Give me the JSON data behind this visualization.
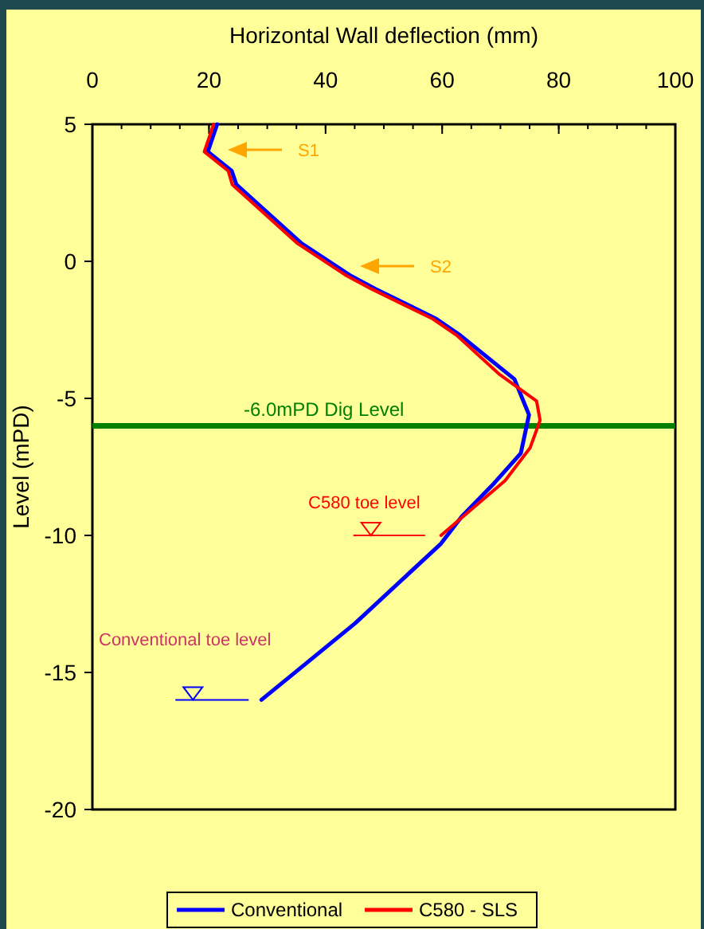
{
  "chart_data": {
    "type": "line",
    "title": "Horizontal Wall deflection (mm)",
    "ylabel": "Level (mPD)",
    "xlim": [
      0,
      100
    ],
    "xticks": [
      0,
      20,
      40,
      60,
      80,
      100
    ],
    "ylim": [
      -20,
      5
    ],
    "yticks": [
      -20,
      -15,
      -10,
      -5,
      0,
      5
    ],
    "series": [
      {
        "name": "Conventional",
        "color": "#0000ff",
        "x": [
          21.4,
          19.8,
          23.9,
          24.7,
          35.9,
          44.1,
          48.5,
          59.0,
          63.1,
          72.4,
          74.9,
          73.5,
          68.9,
          63.4,
          59.8,
          45.1,
          34.2,
          29.0
        ],
        "values": [
          5,
          4,
          3.3,
          2.8,
          0.65,
          -0.5,
          -1.0,
          -2.1,
          -2.7,
          -4.3,
          -5.6,
          -7.0,
          -8.1,
          -9.3,
          -10.3,
          -13.2,
          -15.1,
          -16.0
        ]
      },
      {
        "name": "C580 - SLS",
        "color": "#ff0000",
        "x": [
          20.8,
          19.2,
          23.3,
          24,
          35.2,
          43.4,
          47.8,
          58.4,
          62.5,
          69.7,
          76.2,
          76.8,
          75.1,
          70.8,
          59.8
        ],
        "values": [
          5,
          4,
          3.3,
          2.8,
          0.65,
          -0.5,
          -1.0,
          -2.1,
          -2.7,
          -4.1,
          -5.1,
          -5.8,
          -6.8,
          -8.0,
          -10.0
        ]
      }
    ],
    "ref_lines": [
      {
        "axis": "y",
        "value": -6,
        "label": "-6.0mPD Dig Level",
        "color": "#008000"
      }
    ],
    "annotations": [
      "S1",
      "S2",
      {
        "text": "C580 toe level",
        "x": 59.8,
        "y": -10
      },
      {
        "text": "Conventional toe level",
        "x": 29,
        "y": -16
      }
    ],
    "legend": "bottom",
    "grid": false,
    "marker": "none",
    "line_style": "solid"
  }
}
